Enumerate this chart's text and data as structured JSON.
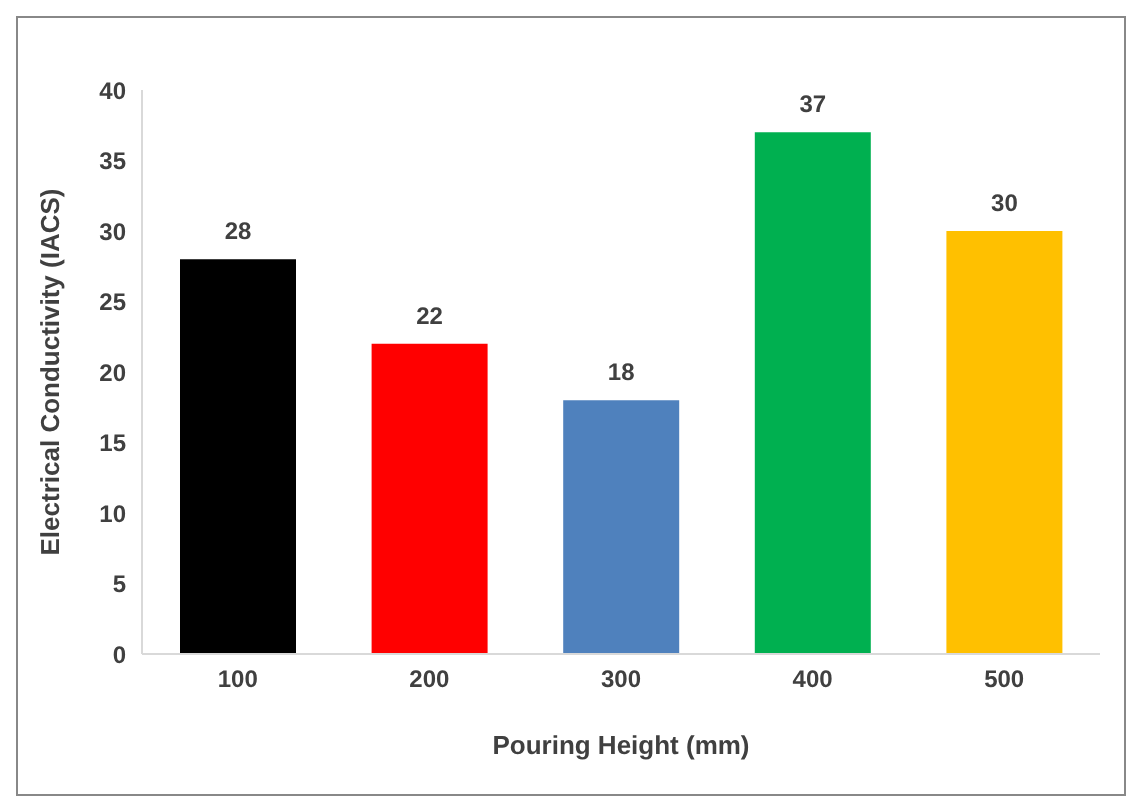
{
  "chart_data": {
    "type": "bar",
    "xlabel": "Pouring Height (mm)",
    "ylabel": "Electrical Conductivity  (IACS)",
    "categories": [
      "100",
      "200",
      "300",
      "400",
      "500"
    ],
    "values": [
      28,
      22,
      18,
      37,
      30
    ],
    "colors": [
      "#000000",
      "#ff0000",
      "#4f81bd",
      "#00b050",
      "#ffc000"
    ],
    "ylim": [
      0,
      40
    ],
    "yticks": [
      0,
      5,
      10,
      15,
      20,
      25,
      30,
      35,
      40
    ],
    "grid": false,
    "data_labels": true
  }
}
